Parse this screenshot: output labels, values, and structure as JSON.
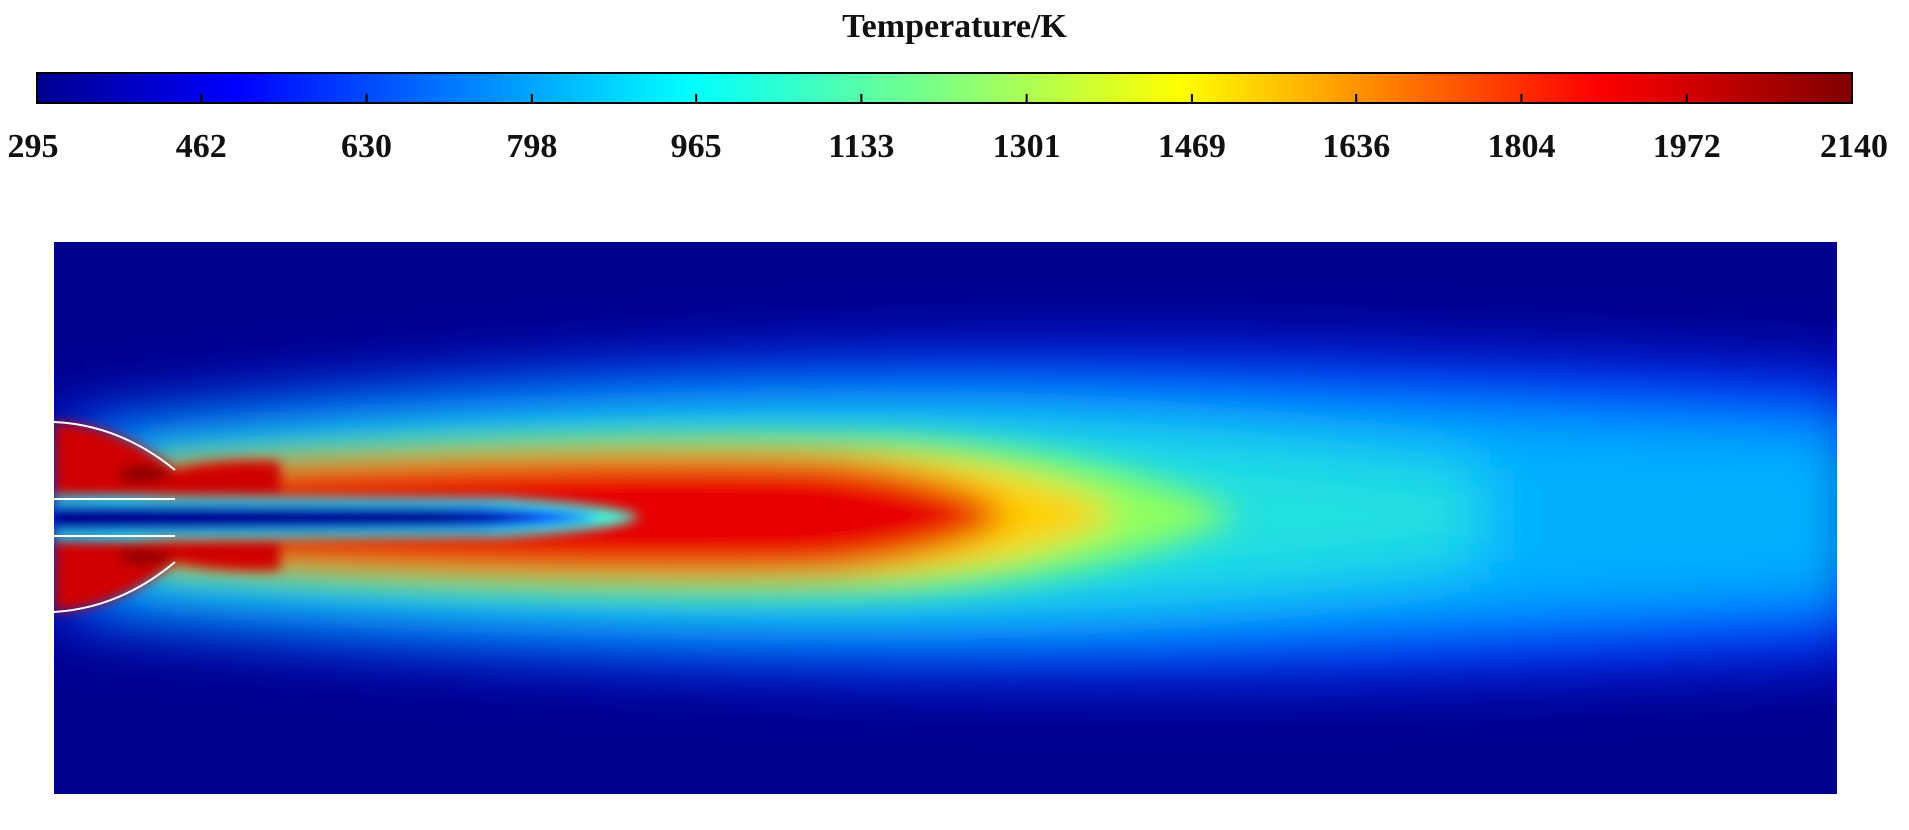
{
  "chart_data": {
    "type": "heatmap",
    "colormap": "jet",
    "colorbar": {
      "title": "Temperature/K",
      "min": 295,
      "max": 2140,
      "ticks": [
        295,
        462,
        630,
        798,
        965,
        1133,
        1301,
        1469,
        1636,
        1804,
        1972,
        2140
      ],
      "tick_labels": [
        "295",
        "462",
        "630",
        "798",
        "965",
        "1133",
        "1301",
        "1469",
        "1636",
        "1804",
        "1972",
        "2140"
      ],
      "orientation": "horizontal",
      "placement": "top"
    },
    "field": {
      "description_quantity": "temperature",
      "ambient_value": 295,
      "nozzle_value": 2140,
      "peak_core_value": 1850,
      "outlet_centerline_value": 1000
    }
  },
  "colors": {
    "background": "#ffffff",
    "jet_low": "#00008f",
    "jet_high": "#800000"
  }
}
